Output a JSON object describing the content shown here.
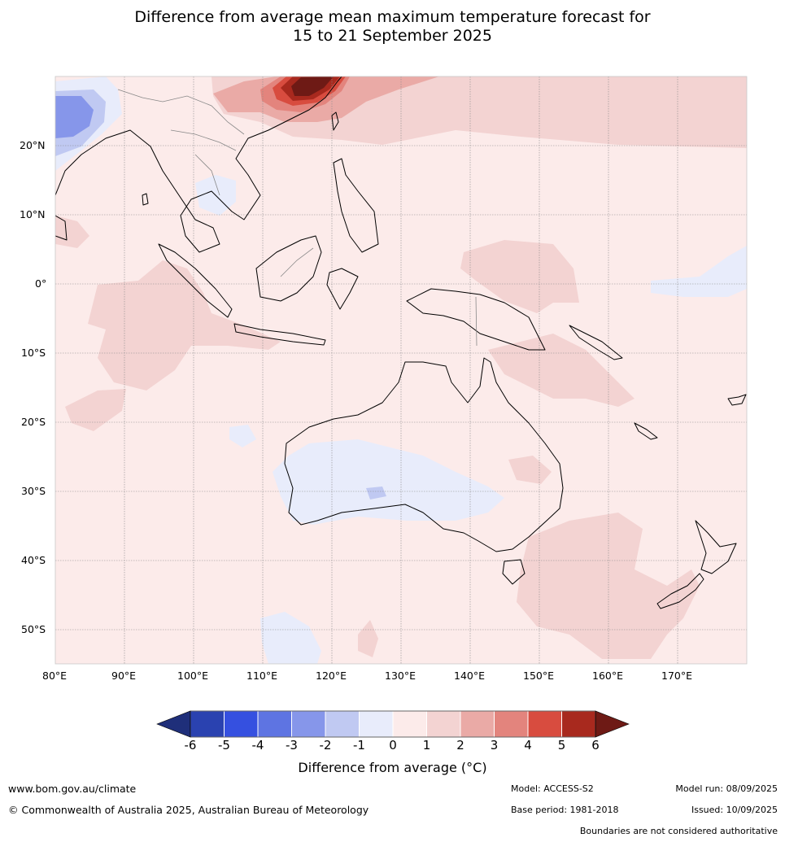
{
  "title": {
    "line1": "Difference from average mean maximum temperature forecast for",
    "line2": "15 to 21 September 2025"
  },
  "axes": {
    "lon_labels": [
      "80°E",
      "90°E",
      "100°E",
      "110°E",
      "120°E",
      "130°E",
      "140°E",
      "150°E",
      "160°E",
      "170°E"
    ],
    "lat_labels": [
      "20°N",
      "10°N",
      "0°",
      "10°S",
      "20°S",
      "30°S",
      "40°S",
      "50°S"
    ]
  },
  "colorbar": {
    "ticks": [
      "-6",
      "-5",
      "-4",
      "-3",
      "-2",
      "-1",
      "0",
      "1",
      "2",
      "3",
      "4",
      "5",
      "6"
    ],
    "label": "Difference from average (°C)",
    "colors": {
      "below_-6": "#1f2f7a",
      "-6_-5": "#2a42b0",
      "-5_-4": "#3550e0",
      "-4_-3": "#5e74e2",
      "-3_-2": "#8696ea",
      "-2_-1": "#c0c9f2",
      "-1_0": "#e8ecfb",
      "0_1": "#fcebea",
      "1_2": "#f3d3d2",
      "2_3": "#eaaaa6",
      "3_4": "#e3847d",
      "4_5": "#d84c3f",
      "5_6": "#a8291e",
      "above_6": "#6e1a15"
    }
  },
  "footer": {
    "website": "www.bom.gov.au/climate",
    "copyright": "© Commonwealth of Australia 2025, Australian Bureau of Meteorology",
    "model": "Model: ACCESS-S2",
    "model_run": "Model run: 08/09/2025",
    "base_period": "Base period: 1981-2018",
    "issued": "Issued: 10/09/2025",
    "disclaimer": "Boundaries are not considered authoritative"
  }
}
